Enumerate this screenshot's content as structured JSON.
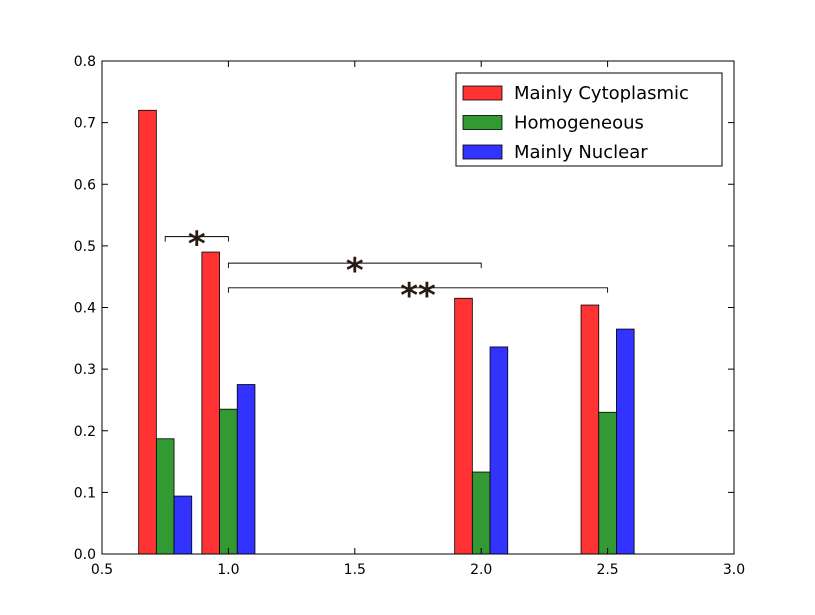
{
  "chart_data": {
    "type": "bar",
    "title": "",
    "xlabel": "",
    "ylabel": "",
    "xlim": [
      0.5,
      3.0
    ],
    "ylim": [
      0.0,
      0.8
    ],
    "xticks": [
      "0.5",
      "1.0",
      "1.5",
      "2.0",
      "2.5",
      "3.0"
    ],
    "yticks": [
      "0.0",
      "0.1",
      "0.2",
      "0.3",
      "0.4",
      "0.5",
      "0.6",
      "0.7",
      "0.8"
    ],
    "grid": false,
    "legend_position": "top-right",
    "bar_width": 0.07,
    "groups": [
      {
        "x": 0.75,
        "values": [
          0.72,
          0.187,
          0.094
        ]
      },
      {
        "x": 1.0,
        "values": [
          0.49,
          0.235,
          0.275
        ]
      },
      {
        "x": 2.0,
        "values": [
          0.415,
          0.133,
          0.336
        ]
      },
      {
        "x": 2.5,
        "values": [
          0.404,
          0.23,
          0.365
        ]
      }
    ],
    "series": [
      {
        "name": "Mainly Cytoplasmic",
        "color": "#ff3333"
      },
      {
        "name": "Homogeneous",
        "color": "#339933"
      },
      {
        "name": "Mainly Nuclear",
        "color": "#3333ff"
      }
    ],
    "annotations": [
      {
        "text": "*",
        "x1": 0.75,
        "x2": 1.0,
        "y": 0.515
      },
      {
        "text": "*",
        "x1": 1.0,
        "x2": 2.0,
        "y": 0.472
      },
      {
        "text": "**",
        "x1": 1.0,
        "x2": 2.5,
        "y": 0.432
      }
    ]
  }
}
